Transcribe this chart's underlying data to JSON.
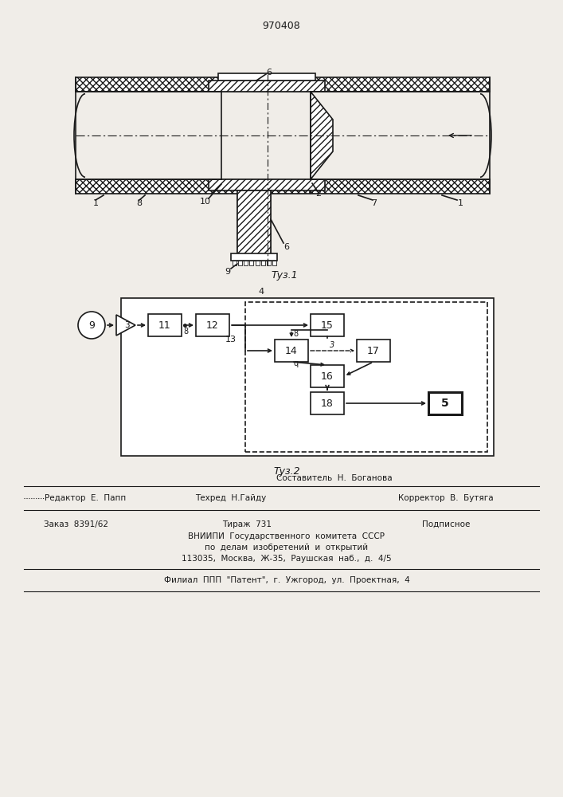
{
  "title": "970408",
  "bg_color": "#f0ede8",
  "line_color": "#1a1a1a",
  "fig1_caption": "Τуз.1",
  "fig2_caption": "Τуз.2",
  "footer": {
    "sostavitel": "Составитель  Н.  Боганова",
    "redaktor": "Редактор  Е.  Папп",
    "tehred": "Техред  Н.Гайду",
    "korrektor": "Корректор  В.  Бутяга",
    "zakaz": "Заказ  8391/62",
    "tirazh": "Тираж  731",
    "podpisnoe": "Подписное",
    "vniipи1": "ВНИИПИ  Государственного  комитета  СССР",
    "vniipи2": "по  делам  изобретений  и  открытий",
    "vniipи3": "113035,  Москва,  Ж-35,  Раушская  наб.,  д.  4/5",
    "filial": "Филиал  ППП  \"Патент\",  г.  Ужгород,  ул.  Проектная,  4"
  }
}
